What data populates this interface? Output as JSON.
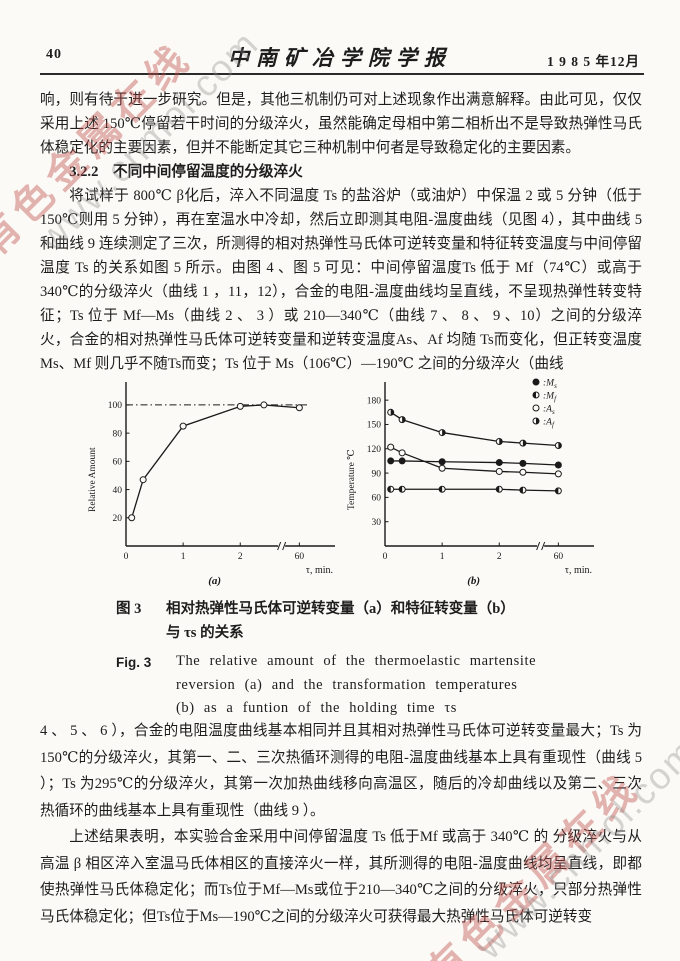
{
  "watermarks": {
    "brand_text": "有色金属在线",
    "url_text": "www.cnmol.com",
    "red_color": "#c0504d",
    "gray_color": "#8a8a8a"
  },
  "header": {
    "page_number": "40",
    "journal_title": "中南矿冶学院学报",
    "issue_date": "1 9 8 5 年12月"
  },
  "body": {
    "p1": "响，则有待于进一步研究。但是，其他三机制仍可对上述现象作出满意解释。由此可见，仅仅采用上述 150℃停留若干时间的分级淬火，虽然能确定母相中第二相析出不是导致热弹性马氏体稳定化的主要因素，但并不能断定其它三种机制中何者是导致稳定化的主要因素。",
    "section_heading": "3.2.2　不同中间停留温度的分级淬火",
    "p2": "将试样于 800℃ β化后，淬入不同温度 Ts 的盐浴炉（或油炉）中保温 2 或 5 分钟（低于150℃则用 5 分钟），再在室温水中冷却，然后立即测其电阻-温度曲线（见图 4），其中曲线 5 和曲线 9 连续测定了三次，所测得的相对热弹性马氏体可逆转变量和特征转变温度与中间停留温度 Ts 的关系如图 5 所示。由图 4 、图 5 可见：中间停留温度Ts 低于 Mf（74℃）或高于340℃的分级淬火（曲线 1 ，11，12），合金的电阻-温度曲线均呈直线，不呈现热弹性转变特征；Ts 位于 Mf—Ms（曲线 2 、 3 ）或 210—340℃（曲线 7 、 8 、 9 、10）之间的分级淬火，合金的相对热弹性马氏体可逆转变量和逆转变温度As、Af 均随 Ts而变化，但正转变温度Ms、Mf 则几乎不随Ts而变；Ts 位于 Ms（106℃）—190℃ 之间的分级淬火（曲线",
    "p3": "4 、 5 、 6 ），合金的电阻温度曲线基本相同并且其相对热弹性马氏体可逆转变量最大；Ts 为150℃的分级淬火，其第一、二、三次热循环测得的电阻-温度曲线基本上具有重现性（曲线 5 ）；Ts 为295℃的分级淬火，其第一次加热曲线移向高温区，随后的冷却曲线以及第二、三次热循环的曲线基本上具有重现性（曲线 9 ）。",
    "p4": "上述结果表明，本实验合金采用中间停留温度 Ts 低于Mf 或高于 340℃ 的 分级淬火与从高温 β 相区淬入室温马氏体相区的直接淬火一样，其所测得的电阻-温度曲线均呈直线，即都使热弹性马氏体稳定化；而Ts位于Mf—Ms或位于210—340℃之间的分级淬火，只部分热弹性马氏体稳定化；但Ts位于Ms—190℃之间的分级淬火可获得最大热弹性马氏体可逆转变"
  },
  "figure": {
    "caption_cn_label": "图 3",
    "caption_cn_line1": "相对热弹性马氏体可逆转变量（a）和特征转变量（b）",
    "caption_cn_line2": "与 τs 的关系",
    "caption_en_label": "Fig. 3",
    "caption_en_line1": "The relative amount of the thermoelastic martensite",
    "caption_en_line2": "reversion (a) and the transformation temperatures",
    "caption_en_line3": "(b) as a funtion of the holding time τs"
  },
  "chart_data": [
    {
      "type": "line",
      "panel_label": "(a)",
      "title": "Relative amount of thermoelastic martensite reversion vs holding time",
      "x": [
        0.1,
        0.3,
        1,
        2,
        5,
        60
      ],
      "series": [
        {
          "name": "Relative Amount",
          "marker": "open",
          "values": [
            20,
            47,
            85,
            99,
            100,
            98
          ]
        }
      ],
      "xlabel": "τ,  min.",
      "ylabel": "Relative Amount",
      "ylim": [
        0,
        112
      ],
      "yticks": [
        20,
        40,
        60,
        80,
        100
      ],
      "xticks": [
        0,
        1,
        2,
        60
      ],
      "x_axis_break_after": 2,
      "ref_line_y": 100,
      "grid": false
    },
    {
      "type": "line",
      "panel_label": "(b)",
      "title": "Transformation temperatures vs holding time",
      "x": [
        0.1,
        0.3,
        1,
        2,
        5,
        60
      ],
      "series": [
        {
          "name": "Ms",
          "marker": "filled",
          "values": [
            105,
            105,
            104,
            103,
            102,
            100
          ]
        },
        {
          "name": "Mf",
          "marker": "half-left",
          "values": [
            70,
            70,
            70,
            70,
            69,
            68
          ]
        },
        {
          "name": "As",
          "marker": "open",
          "values": [
            122,
            115,
            96,
            92,
            91,
            89
          ]
        },
        {
          "name": "Af",
          "marker": "half-right",
          "values": [
            165,
            156,
            140,
            129,
            127,
            124
          ]
        }
      ],
      "legend": [
        {
          "marker": "filled",
          "label": "Ms"
        },
        {
          "marker": "half-left",
          "label": "Mf"
        },
        {
          "marker": "open",
          "label": "As"
        },
        {
          "marker": "half-right",
          "label": "Af"
        }
      ],
      "legend_position": "top-right",
      "xlabel": "τ,  min.",
      "ylabel": "Temperature ℃",
      "ylim": [
        0,
        195
      ],
      "yticks": [
        30,
        60,
        90,
        120,
        150,
        180
      ],
      "xticks": [
        0,
        1,
        2,
        60
      ],
      "x_axis_break_after": 2,
      "grid": false
    }
  ]
}
